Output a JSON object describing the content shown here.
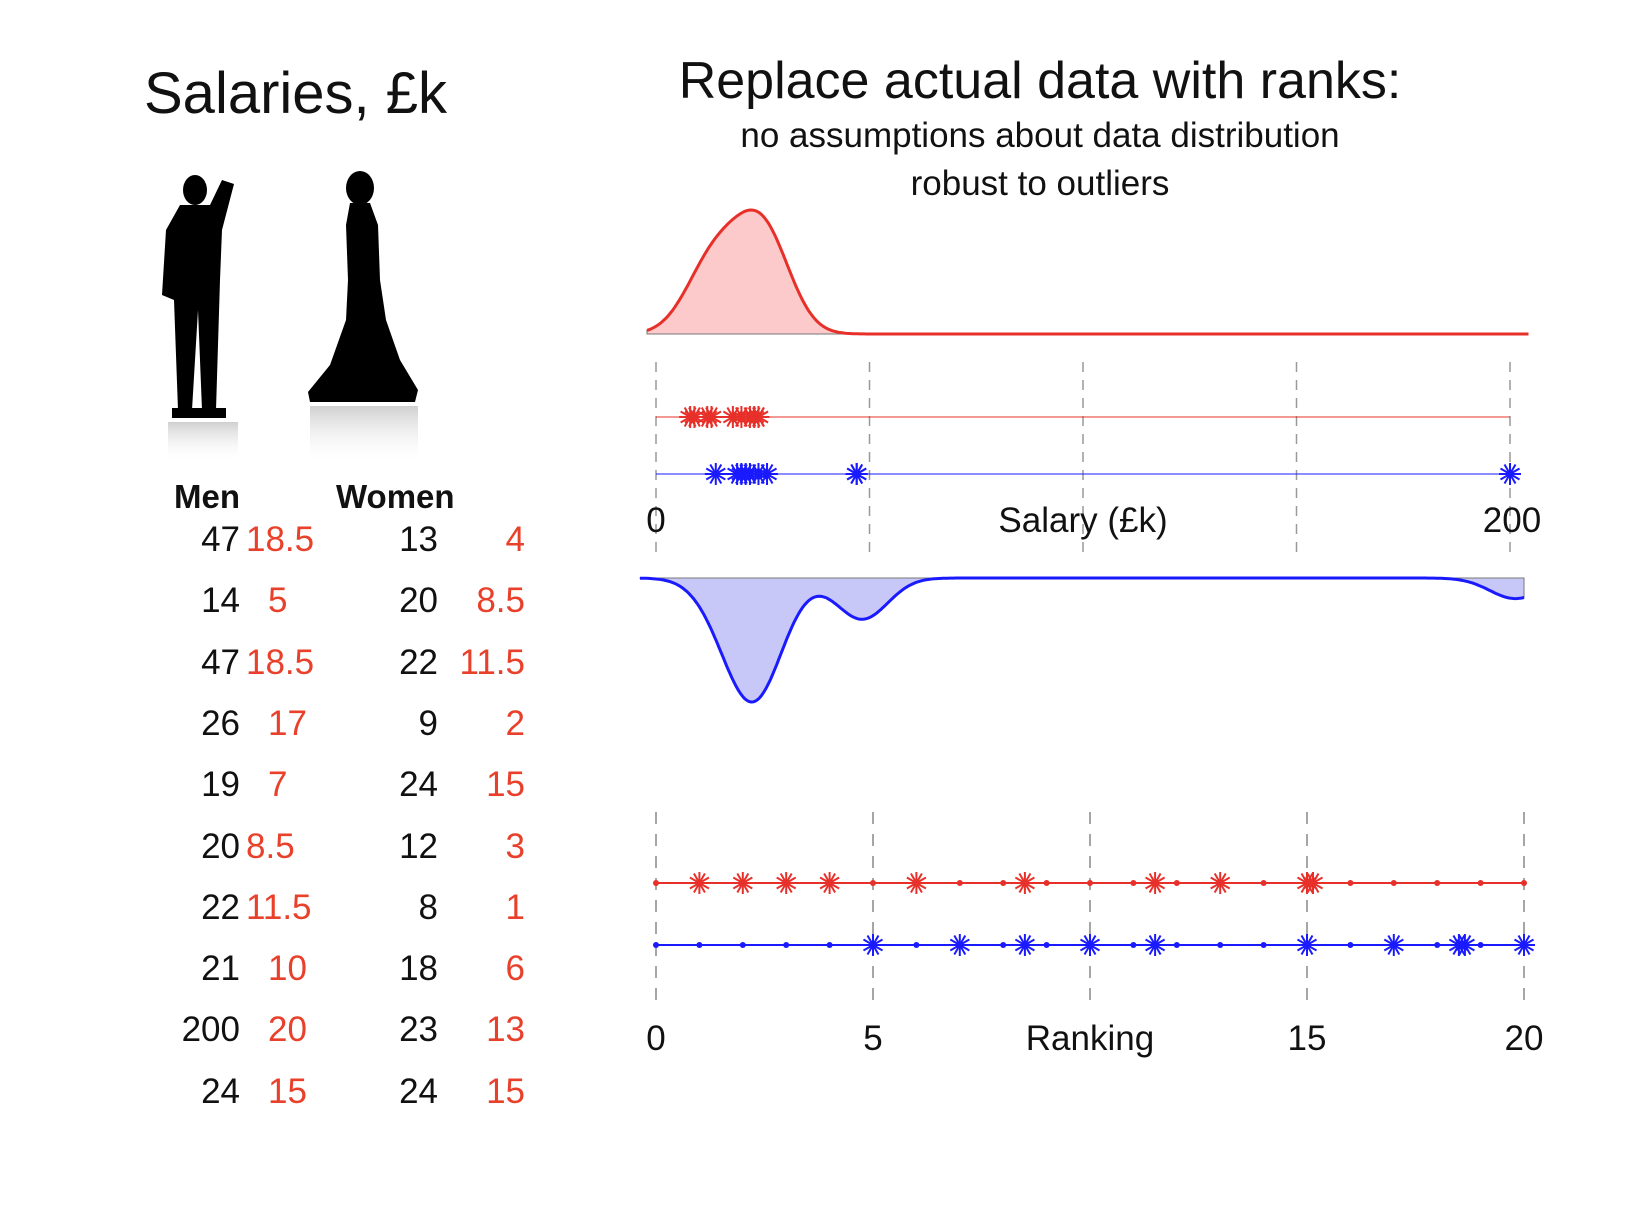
{
  "left_title": "Salaries, £k",
  "right_title": {
    "main": "Replace actual data with ranks:",
    "sub1": "no assumptions about data distribution",
    "sub2": "robust to outliers"
  },
  "table": {
    "men_header": "Men",
    "women_header": "Women",
    "men": [
      {
        "value": "47",
        "rank": "18.5"
      },
      {
        "value": "14",
        "rank": "5"
      },
      {
        "value": "47",
        "rank": "18.5"
      },
      {
        "value": "26",
        "rank": "17"
      },
      {
        "value": "19",
        "rank": "7"
      },
      {
        "value": "20",
        "rank": "8.5"
      },
      {
        "value": "22",
        "rank": "11.5"
      },
      {
        "value": "21",
        "rank": "10"
      },
      {
        "value": "200",
        "rank": "20"
      },
      {
        "value": "24",
        "rank": "15"
      }
    ],
    "women": [
      {
        "value": "13",
        "rank": "4"
      },
      {
        "value": "20",
        "rank": "8.5"
      },
      {
        "value": "22",
        "rank": "11.5"
      },
      {
        "value": "9",
        "rank": "2"
      },
      {
        "value": "24",
        "rank": "15"
      },
      {
        "value": "12",
        "rank": "3"
      },
      {
        "value": "8",
        "rank": "1"
      },
      {
        "value": "18",
        "rank": "6"
      },
      {
        "value": "23",
        "rank": "13"
      },
      {
        "value": "24",
        "rank": "15"
      }
    ]
  },
  "colors": {
    "women": "#e8302a",
    "women_fill": "#fccaca",
    "men": "#1a1aff",
    "men_fill": "#c8c8f8",
    "rank_text": "#e8402a"
  },
  "chart_data": [
    {
      "type": "scatter",
      "xlabel": "Salary (£k)",
      "xlim": [
        0,
        200
      ],
      "tick_labels": [
        "0",
        "200"
      ],
      "gridlines": [
        0,
        50,
        100,
        150,
        200
      ],
      "series": [
        {
          "values": [
            13,
            20,
            22,
            9,
            24,
            12,
            8,
            18,
            23,
            24
          ]
        },
        {
          "values": [
            47,
            14,
            47,
            26,
            19,
            20,
            22,
            21,
            200,
            24
          ]
        }
      ],
      "density_curves": "women density above axis, men density mirrored below"
    },
    {
      "type": "scatter",
      "xlabel": "Ranking",
      "xlim": [
        0,
        20
      ],
      "tick_labels": [
        "0",
        "5",
        "15",
        "20"
      ],
      "gridlines": [
        0,
        5,
        10,
        15,
        20
      ],
      "series": [
        {
          "values": [
            4,
            8.5,
            11.5,
            2,
            15,
            3,
            1,
            6,
            13,
            15
          ]
        },
        {
          "values": [
            18.5,
            5,
            18.5,
            17,
            7,
            8.5,
            11.5,
            10,
            20,
            15
          ]
        }
      ],
      "rank_dots": [
        0,
        1,
        2,
        3,
        4,
        5,
        6,
        7,
        8,
        9,
        10,
        11,
        12,
        13,
        14,
        15,
        16,
        17,
        18,
        19,
        20
      ]
    }
  ]
}
